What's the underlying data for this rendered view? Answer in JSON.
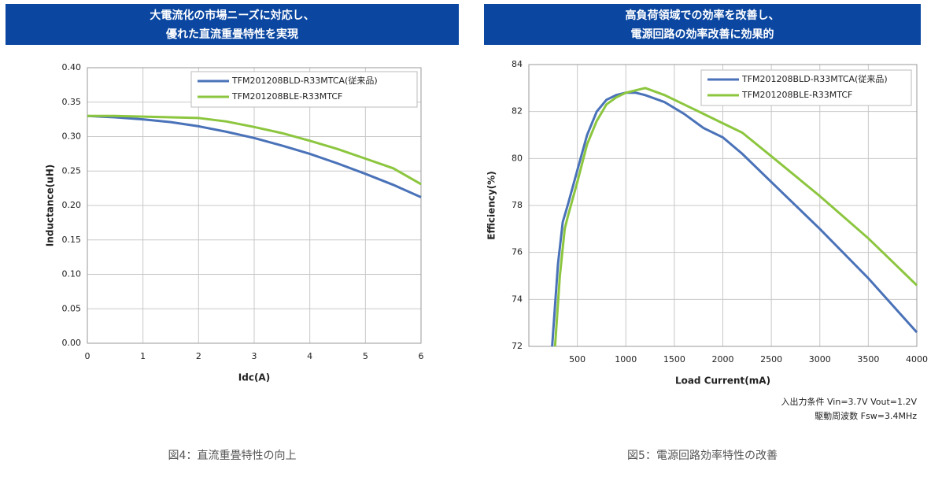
{
  "chart_data": [
    {
      "type": "line",
      "header": [
        "大電流化の市場ニーズに対応し、",
        "優れた直流重畳特性を実現"
      ],
      "caption": "図4：直流重畳特性の向上",
      "x_label": "Idc(A)",
      "y_label": "Inductance(uH)",
      "xlim": [
        0,
        6
      ],
      "xticks": [
        0,
        1,
        2,
        3,
        4,
        5,
        6
      ],
      "ylim": [
        0,
        0.4
      ],
      "yticks": [
        {
          "value": 0,
          "label": "0.00"
        },
        {
          "value": 0.05,
          "label": "0.05"
        },
        {
          "value": 0.1,
          "label": "0.10"
        },
        {
          "value": 0.15,
          "label": "0.15"
        },
        {
          "value": 0.2,
          "label": "0.20"
        },
        {
          "value": 0.25,
          "label": "0.25"
        },
        {
          "value": 0.3,
          "label": "0.30"
        },
        {
          "value": 0.35,
          "label": "0.35"
        },
        {
          "value": 0.4,
          "label": "0.40"
        }
      ],
      "grid": true,
      "legend": "upper right",
      "series": [
        {
          "name": "TFM201208BLD-R33MTCA(従来品)",
          "color": "#4a72b8",
          "x": [
            0,
            0.5,
            1,
            1.5,
            2,
            2.5,
            3,
            3.5,
            4,
            4.5,
            5,
            5.5,
            6
          ],
          "values": [
            0.33,
            0.328,
            0.325,
            0.321,
            0.315,
            0.307,
            0.298,
            0.287,
            0.275,
            0.261,
            0.246,
            0.23,
            0.212
          ]
        },
        {
          "name": "TFM201208BLE-R33MTCF",
          "color": "#8cc63f",
          "x": [
            0,
            0.5,
            1,
            1.5,
            2,
            2.5,
            3,
            3.5,
            4,
            4.5,
            5,
            5.5,
            6
          ],
          "values": [
            0.33,
            0.33,
            0.329,
            0.328,
            0.327,
            0.322,
            0.314,
            0.305,
            0.294,
            0.282,
            0.268,
            0.254,
            0.231
          ]
        }
      ]
    },
    {
      "type": "line",
      "header": [
        "高負荷領域での効率を改善し、",
        "電源回路の効率改善に効果的"
      ],
      "caption": "図5：電源回路効率特性の改善",
      "x_label": "Load Current(mA)",
      "y_label": "Efficiency(%)",
      "notes": [
        "入出力条件 Vin=3.7V Vout=1.2V",
        "駆動周波数 Fsw=3.4MHz"
      ],
      "xlim": [
        0,
        4000
      ],
      "xticks": [
        500,
        1000,
        1500,
        2000,
        2500,
        3000,
        3500,
        4000
      ],
      "ylim": [
        72,
        84
      ],
      "yticks": [
        72,
        74,
        76,
        78,
        80,
        82,
        84
      ],
      "grid": true,
      "legend": "upper right",
      "series": [
        {
          "name": "TFM201208BLD-R33MTCA(従来品)",
          "color": "#4a72b8",
          "x": [
            240,
            300,
            350,
            400,
            500,
            600,
            700,
            800,
            900,
            1000,
            1100,
            1200,
            1400,
            1600,
            1800,
            2000,
            2200,
            2500,
            3000,
            3500,
            4000
          ],
          "values": [
            72,
            75.5,
            77.3,
            78,
            79.5,
            81,
            82,
            82.5,
            82.7,
            82.8,
            82.8,
            82.7,
            82.4,
            81.9,
            81.3,
            80.9,
            80.2,
            79,
            77,
            74.9,
            72.6
          ]
        },
        {
          "name": "TFM201208BLE-R33MTCF",
          "color": "#8cc63f",
          "x": [
            270,
            320,
            370,
            400,
            500,
            600,
            700,
            800,
            900,
            1000,
            1100,
            1200,
            1400,
            1600,
            1800,
            2000,
            2200,
            2500,
            3000,
            3500,
            4000
          ],
          "values": [
            72,
            75,
            77,
            77.5,
            79,
            80.6,
            81.6,
            82.3,
            82.6,
            82.8,
            82.9,
            83,
            82.7,
            82.3,
            81.9,
            81.5,
            81.1,
            80.1,
            78.4,
            76.6,
            74.6
          ]
        }
      ]
    }
  ]
}
